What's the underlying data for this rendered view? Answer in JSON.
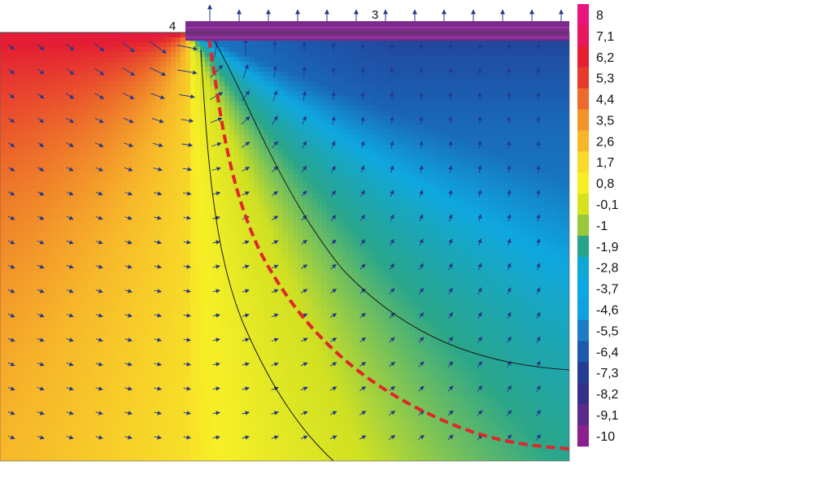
{
  "region_labels": {
    "left_corner": "4",
    "top_boundary": "3"
  },
  "legend": {
    "labels": [
      "8",
      "7,1",
      "6,2",
      "5,3",
      "4,4",
      "3,5",
      "2,6",
      "1,7",
      "0,8",
      "-0,1",
      "-1",
      "-1,9",
      "-2,8",
      "-3,7",
      "-4,6",
      "-5,5",
      "-6,4",
      "-7,3",
      "-8,2",
      "-9,1",
      "-10"
    ],
    "colors": [
      "#e8157f",
      "#e8185c",
      "#e41e32",
      "#e63a2a",
      "#ec6a2a",
      "#f2932a",
      "#f7b62a",
      "#f9d92a",
      "#f7ef26",
      "#d6e21e",
      "#99c83a",
      "#27a38c",
      "#0fa7d6",
      "#0ba8e4",
      "#10a1e2",
      "#1c7dc6",
      "#1c5aae",
      "#253e94",
      "#33308a",
      "#5a2a8a",
      "#8a1f8e"
    ]
  },
  "field": {
    "colormap": [
      "#e8157f",
      "#e41e32",
      "#ec6a2a",
      "#f7b62a",
      "#f7ef26",
      "#cfe022",
      "#2aa68a",
      "#0fa7e0",
      "#1c5aae",
      "#2a2e84"
    ],
    "arrow_color": "#233a8a",
    "contour_color": "#1a1a1a",
    "highlight_curve_color": "#e0262a",
    "top_plate_color": "#7d2a8c"
  }
}
